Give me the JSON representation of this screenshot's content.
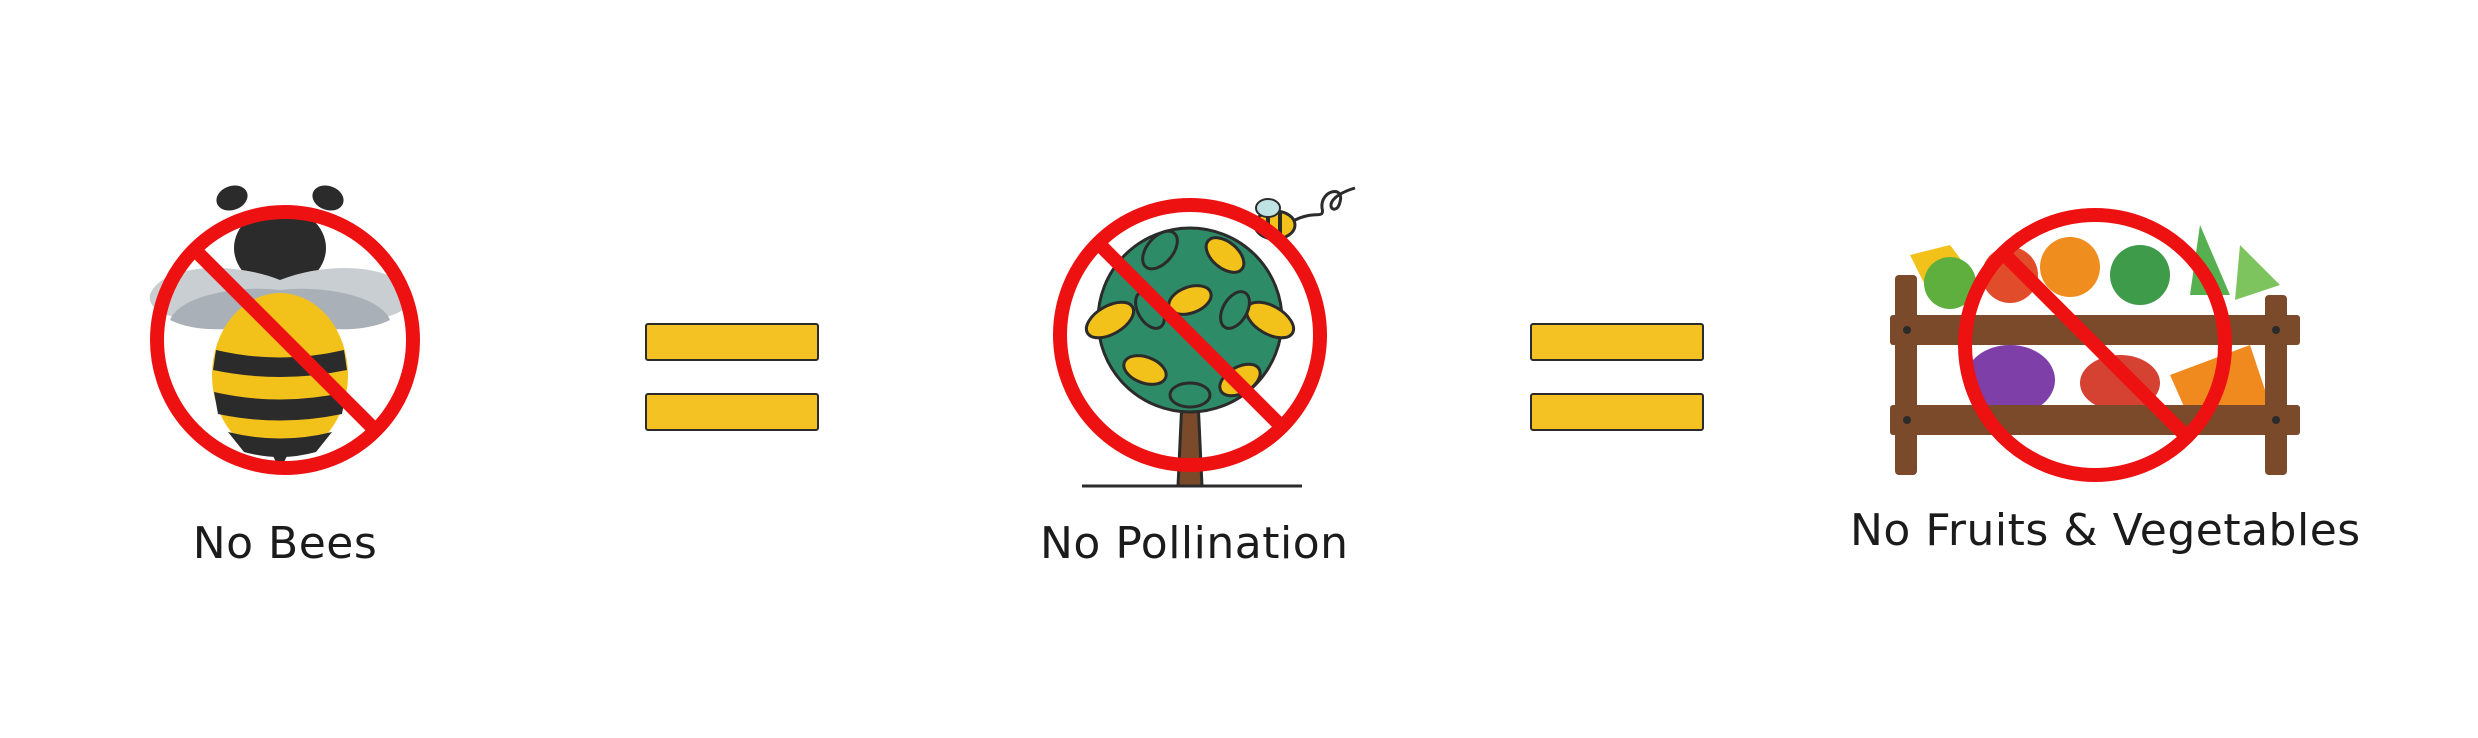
{
  "panels": [
    {
      "label": "No Bees",
      "icon": "no-bees-icon"
    },
    {
      "label": "No Pollination",
      "icon": "no-pollination-icon"
    },
    {
      "label": "No Fruits & Vegetables",
      "icon": "no-produce-icon"
    }
  ],
  "colors": {
    "equals_fill": "#F5C223",
    "prohibition_red": "#EE1111",
    "bee_yellow": "#F3C21A",
    "bee_dark": "#2B2B2B",
    "leaf_green": "#2E8B68",
    "wood_brown": "#7A4A2A"
  }
}
